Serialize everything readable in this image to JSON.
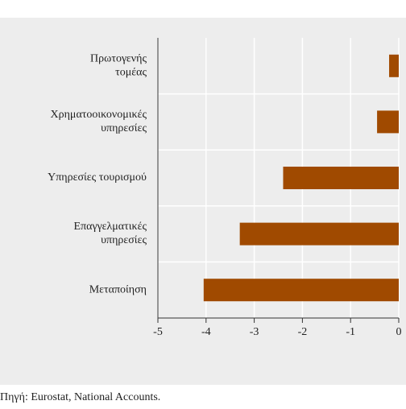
{
  "chart_data": {
    "type": "bar",
    "orientation": "horizontal",
    "categories": [
      "Πρωτογενής\nτομέας",
      "Χρηματοοικονομικές\nυπηρεσίες",
      "Υπηρεσίες τουρισμού",
      "Επαγγελματικές\nυπηρεσίες",
      "Μεταποίηση"
    ],
    "values": [
      -0.2,
      -0.45,
      -2.4,
      -3.3,
      -4.05
    ],
    "color": "#a04a00",
    "xlim": [
      -5,
      0
    ],
    "xticks": [
      -5,
      -4,
      -3,
      -2,
      -1,
      0
    ],
    "grid": true,
    "source": "Πηγή: Eurostat, National Accounts."
  }
}
